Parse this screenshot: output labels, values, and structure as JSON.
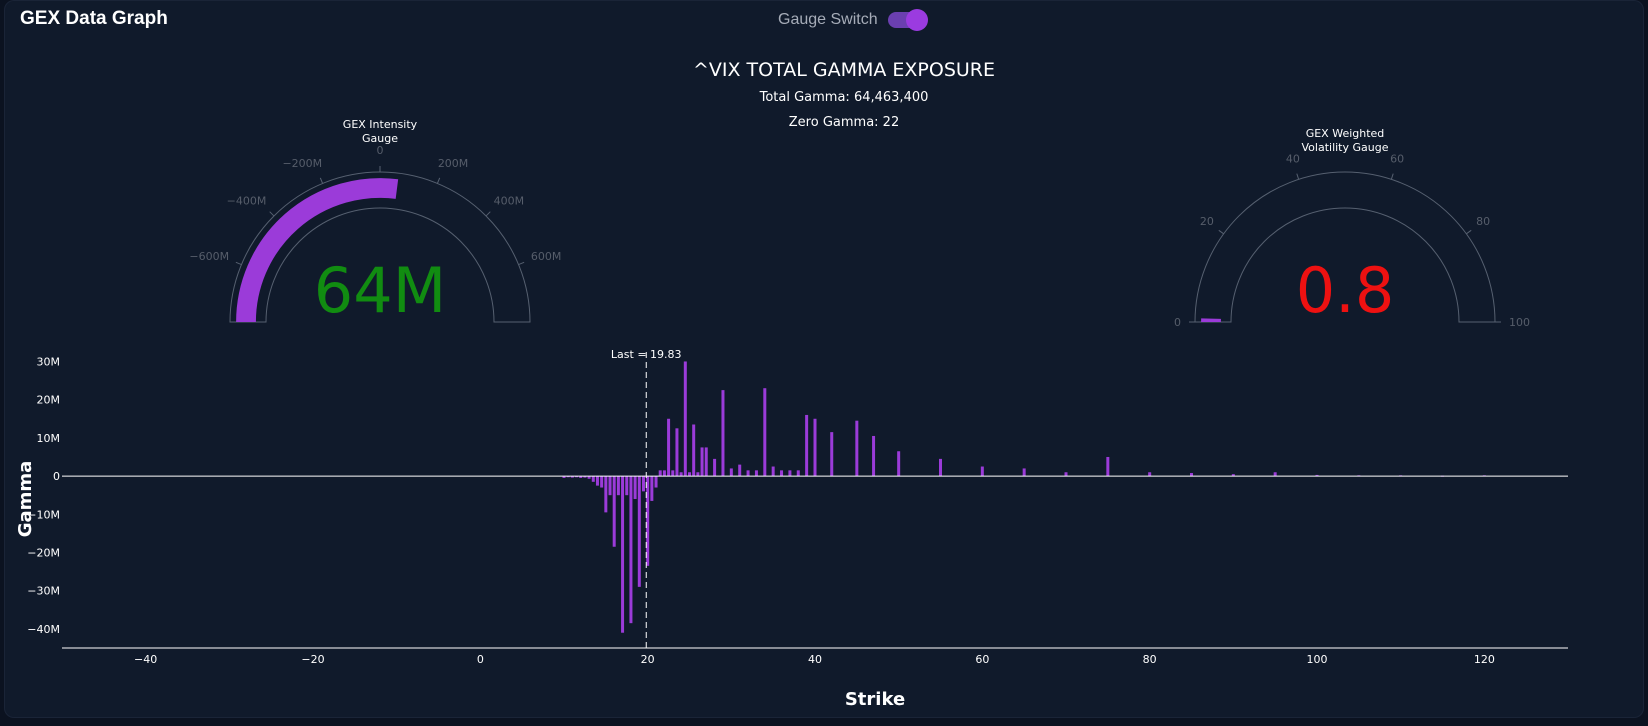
{
  "header": {
    "title": "GEX Data Graph",
    "switch_label": "Gauge Switch",
    "switch_on": true
  },
  "chart_title": {
    "main": "^VIX TOTAL GAMMA EXPOSURE",
    "total_gamma": "Total Gamma: 64,463,400",
    "zero_gamma": "Zero Gamma: 22"
  },
  "gauges": [
    {
      "title_line1": "GEX Intensity",
      "title_line2": "Gauge",
      "value": 64463400,
      "display_value": "64M",
      "value_color": "#118c11",
      "min": -800000000,
      "max": 800000000,
      "bar_from": -800000000,
      "ticks": [
        {
          "value": -600000000,
          "label": "−600M"
        },
        {
          "value": -400000000,
          "label": "−400M"
        },
        {
          "value": -200000000,
          "label": "−200M"
        },
        {
          "value": 0,
          "label": "0"
        },
        {
          "value": 200000000,
          "label": "200M"
        },
        {
          "value": 400000000,
          "label": "400M"
        },
        {
          "value": 600000000,
          "label": "600M"
        }
      ]
    },
    {
      "title_line1": "GEX Weighted",
      "title_line2": "Volatility Gauge",
      "value": 0.8,
      "display_value": "0.8",
      "value_color": "#ee1111",
      "min": 0,
      "max": 100,
      "bar_from": 0,
      "ticks": [
        {
          "value": 0,
          "label": "0"
        },
        {
          "value": 20,
          "label": "20"
        },
        {
          "value": 40,
          "label": "40"
        },
        {
          "value": 60,
          "label": "60"
        },
        {
          "value": 80,
          "label": "80"
        },
        {
          "value": 100,
          "label": "100"
        }
      ]
    }
  ],
  "colors": {
    "bar": "#9b3bd9",
    "background": "#101a2b",
    "axis": "#ffffff"
  },
  "chart_data": {
    "type": "bar",
    "xlabel": "Strike",
    "ylabel": "Gamma",
    "xlim": [
      -50,
      130
    ],
    "ylim": [
      -45000000,
      33000000
    ],
    "x_ticks": [
      -40,
      -20,
      0,
      20,
      40,
      60,
      80,
      100,
      120
    ],
    "x_tick_labels": [
      "−40",
      "−20",
      "0",
      "20",
      "40",
      "60",
      "80",
      "100",
      "120"
    ],
    "y_ticks": [
      30000000,
      20000000,
      10000000,
      0,
      -10000000,
      -20000000,
      -30000000,
      -40000000
    ],
    "y_tick_labels": [
      "30M",
      "20M",
      "10M",
      "0",
      "−10M",
      "−20M",
      "−30M",
      "−40M"
    ],
    "annotation": {
      "x": 19.83,
      "label": "Last = 19.83"
    },
    "x": [
      10,
      10.5,
      11,
      11.5,
      12,
      12.5,
      13,
      13.5,
      14,
      14.5,
      15,
      15.5,
      16,
      16.5,
      17,
      17.5,
      18,
      18.5,
      19,
      19.5,
      20,
      20.5,
      21,
      21.5,
      22,
      22.5,
      23,
      23.5,
      24,
      24.5,
      25,
      25.5,
      26,
      26.5,
      27,
      28,
      29,
      30,
      31,
      32,
      33,
      34,
      35,
      36,
      37,
      38,
      39,
      40,
      42,
      45,
      47,
      50,
      55,
      60,
      65,
      70,
      75,
      80,
      85,
      90,
      95,
      100,
      105,
      110,
      115,
      120
    ],
    "values": [
      -500000,
      -300000,
      -400000,
      -300000,
      -500000,
      -400000,
      -700000,
      -1500000,
      -2500000,
      -3000000,
      -9500000,
      -5000000,
      -18500000,
      -5000000,
      -41000000,
      -5000000,
      -38500000,
      -6000000,
      -29000000,
      -4000000,
      -23500000,
      -6500000,
      -3000000,
      1500000,
      1500000,
      15000000,
      1500000,
      12500000,
      1000000,
      30000000,
      1000000,
      13500000,
      1000000,
      7500000,
      7500000,
      4500000,
      22500000,
      2000000,
      3000000,
      1500000,
      1500000,
      23000000,
      2500000,
      1500000,
      1500000,
      1500000,
      16000000,
      15000000,
      11500000,
      14500000,
      10500000,
      6500000,
      4500000,
      2500000,
      2000000,
      1000000,
      5000000,
      1000000,
      800000,
      500000,
      1000000,
      300000,
      200000,
      200000,
      100000,
      200000
    ]
  }
}
